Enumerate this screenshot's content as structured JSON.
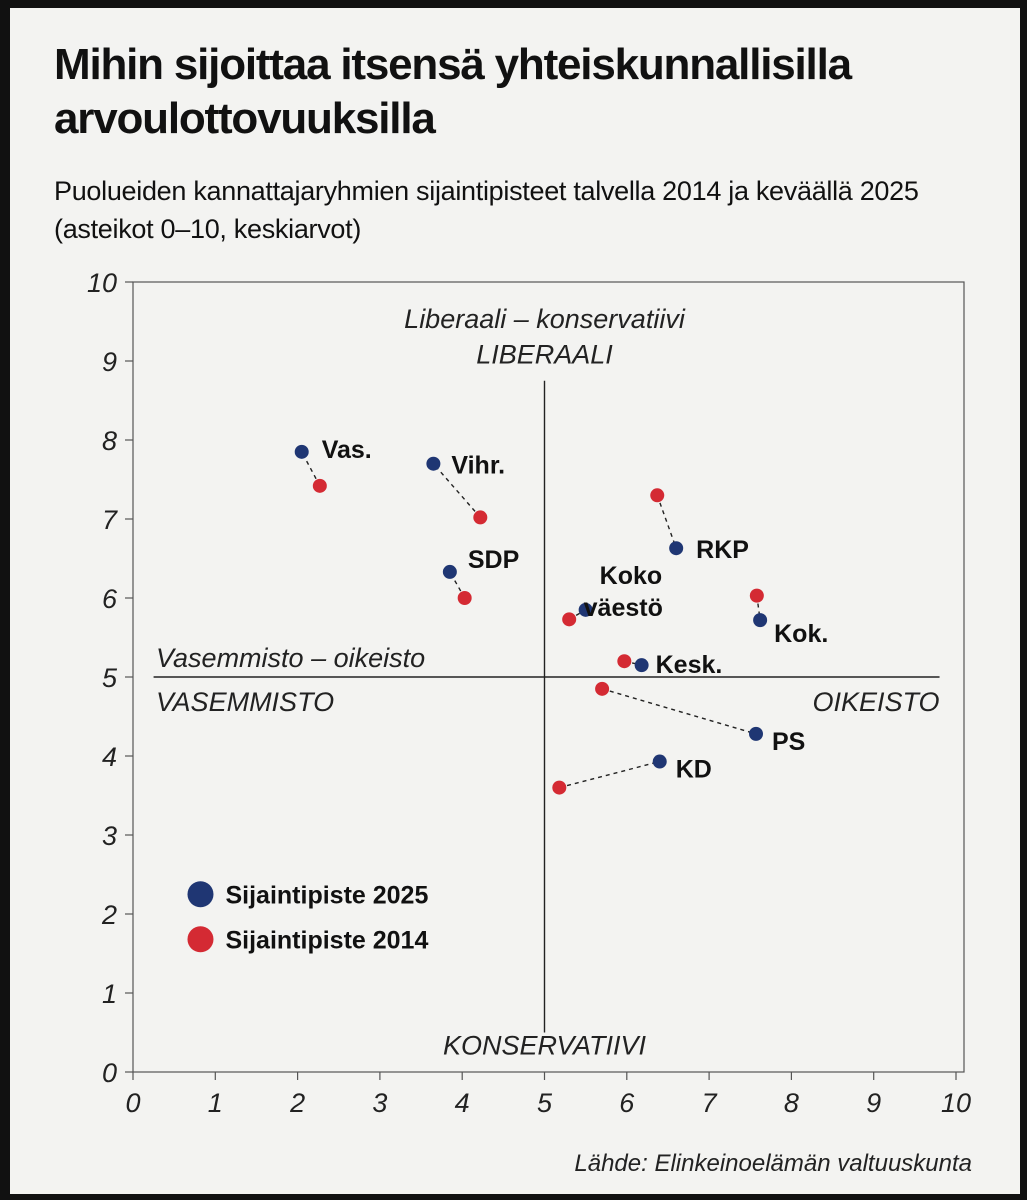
{
  "header": {
    "title": "Mihin sijoittaa itsensä yhteiskunnallisilla arvoulottovuuksilla",
    "subtitle": "Puolueiden kannattajaryhmien sijaintipisteet talvella 2014 ja keväällä 2025 (asteikot 0–10, keskiarvot)"
  },
  "footer": {
    "source": "Lähde: Elinkeinoelämän valtuuskunta"
  },
  "chart_data": {
    "type": "scatter",
    "xlim": [
      0,
      10
    ],
    "ylim": [
      0,
      10
    ],
    "xticks": [
      "0",
      "1",
      "2",
      "3",
      "4",
      "5",
      "6",
      "7",
      "8",
      "9",
      "10"
    ],
    "yticks": [
      "0",
      "1",
      "2",
      "3",
      "4",
      "5",
      "6",
      "7",
      "8",
      "9",
      "10"
    ],
    "grid": false,
    "legend_position": "bottom-left",
    "axis_captions": {
      "vertical_title": "Liberaali – konservatiivi",
      "top": "LIBERAALI",
      "bottom": "KONSERVATIIVI",
      "horizontal_title": "Vasemmisto – oikeisto",
      "left": "VASEMMISTO",
      "right": "OIKEISTO"
    },
    "crosshair": {
      "x": 5,
      "y": 5
    },
    "series": [
      {
        "name": "Sijaintipiste 2025",
        "color": "#1f3673"
      },
      {
        "name": "Sijaintipiste 2014",
        "color": "#d42a33"
      }
    ],
    "parties": [
      {
        "label": "Vas.",
        "p2025": [
          2.05,
          7.85
        ],
        "p2014": [
          2.27,
          7.42
        ]
      },
      {
        "label": "Vihr.",
        "p2025": [
          3.65,
          7.7
        ],
        "p2014": [
          4.22,
          7.02
        ]
      },
      {
        "label": "SDP",
        "p2025": [
          3.85,
          6.33
        ],
        "p2014": [
          4.03,
          6.0
        ]
      },
      {
        "label": "Koko väestö",
        "p2025": [
          5.5,
          5.85
        ],
        "p2014": [
          5.3,
          5.73
        ]
      },
      {
        "label": "RKP",
        "p2025": [
          6.6,
          6.63
        ],
        "p2014": [
          6.37,
          7.3
        ]
      },
      {
        "label": "Kok.",
        "p2025": [
          7.62,
          5.72
        ],
        "p2014": [
          7.58,
          6.03
        ]
      },
      {
        "label": "Kesk.",
        "p2025": [
          6.18,
          5.15
        ],
        "p2014": [
          5.97,
          5.2
        ]
      },
      {
        "label": "PS",
        "p2025": [
          7.57,
          4.28
        ],
        "p2014": [
          5.7,
          4.85
        ]
      },
      {
        "label": "KD",
        "p2025": [
          6.4,
          3.93
        ],
        "p2014": [
          5.18,
          3.6
        ]
      }
    ]
  }
}
